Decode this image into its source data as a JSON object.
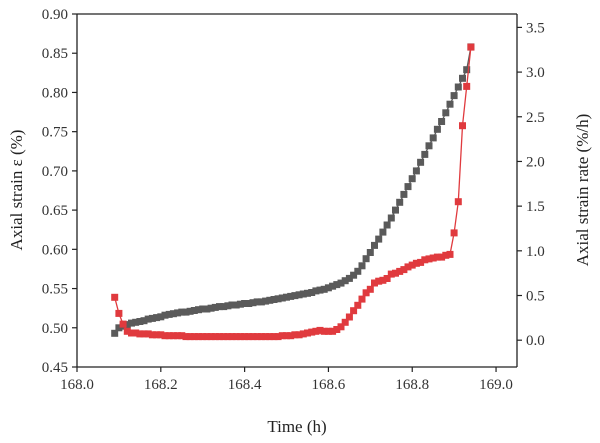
{
  "chart_data": {
    "type": "scatter",
    "xlabel": "Time (h)",
    "ylabel_left": "Axial strain ε (%)",
    "ylabel_right": "Axial strain rate (%/h)",
    "xlim": [
      168.0,
      169.05
    ],
    "ylim_left": [
      0.45,
      0.9
    ],
    "ylim_right": [
      -0.3,
      3.65
    ],
    "x_ticks": [
      "168.0",
      "168.2",
      "168.4",
      "168.6",
      "168.8",
      "169.0"
    ],
    "y_left_ticks": [
      "0.45",
      "0.50",
      "0.55",
      "0.60",
      "0.65",
      "0.70",
      "0.75",
      "0.80",
      "0.85",
      "0.90"
    ],
    "y_right_ticks": [
      "0.0",
      "0.5",
      "1.0",
      "1.5",
      "2.0",
      "2.5",
      "3.0",
      "3.5"
    ],
    "grid": false,
    "series": [
      {
        "axis": "left",
        "color": "#5a5a5a",
        "marker": "square",
        "x": [
          168.09,
          168.1,
          168.11,
          168.12,
          168.13,
          168.14,
          168.15,
          168.16,
          168.17,
          168.18,
          168.19,
          168.2,
          168.21,
          168.22,
          168.23,
          168.24,
          168.25,
          168.26,
          168.27,
          168.28,
          168.29,
          168.3,
          168.31,
          168.32,
          168.33,
          168.34,
          168.35,
          168.36,
          168.37,
          168.38,
          168.39,
          168.4,
          168.41,
          168.42,
          168.43,
          168.44,
          168.45,
          168.46,
          168.47,
          168.48,
          168.49,
          168.5,
          168.51,
          168.52,
          168.53,
          168.54,
          168.55,
          168.56,
          168.57,
          168.58,
          168.59,
          168.6,
          168.61,
          168.62,
          168.63,
          168.64,
          168.65,
          168.66,
          168.67,
          168.68,
          168.69,
          168.7,
          168.71,
          168.72,
          168.73,
          168.74,
          168.75,
          168.76,
          168.77,
          168.78,
          168.79,
          168.8,
          168.81,
          168.82,
          168.83,
          168.84,
          168.85,
          168.86,
          168.87,
          168.88,
          168.89,
          168.9,
          168.91,
          168.92,
          168.93,
          168.94
        ],
        "y": [
          0.493,
          0.5,
          0.502,
          0.504,
          0.506,
          0.507,
          0.508,
          0.509,
          0.511,
          0.512,
          0.513,
          0.514,
          0.516,
          0.517,
          0.518,
          0.519,
          0.52,
          0.52,
          0.521,
          0.522,
          0.523,
          0.524,
          0.524,
          0.525,
          0.526,
          0.527,
          0.527,
          0.528,
          0.529,
          0.529,
          0.53,
          0.531,
          0.531,
          0.532,
          0.533,
          0.533,
          0.534,
          0.535,
          0.536,
          0.537,
          0.538,
          0.539,
          0.54,
          0.541,
          0.542,
          0.543,
          0.544,
          0.545,
          0.547,
          0.548,
          0.549,
          0.551,
          0.553,
          0.555,
          0.557,
          0.56,
          0.563,
          0.567,
          0.572,
          0.579,
          0.588,
          0.596,
          0.605,
          0.613,
          0.622,
          0.631,
          0.64,
          0.65,
          0.66,
          0.67,
          0.68,
          0.69,
          0.7,
          0.711,
          0.721,
          0.732,
          0.742,
          0.753,
          0.763,
          0.774,
          0.785,
          0.796,
          0.807,
          0.818,
          0.829,
          0.858
        ]
      },
      {
        "axis": "right",
        "color": "#e03a3e",
        "marker": "square",
        "x": [
          168.09,
          168.1,
          168.11,
          168.12,
          168.13,
          168.14,
          168.15,
          168.16,
          168.17,
          168.18,
          168.19,
          168.2,
          168.21,
          168.22,
          168.23,
          168.24,
          168.25,
          168.26,
          168.27,
          168.28,
          168.29,
          168.3,
          168.31,
          168.32,
          168.33,
          168.34,
          168.35,
          168.36,
          168.37,
          168.38,
          168.39,
          168.4,
          168.41,
          168.42,
          168.43,
          168.44,
          168.45,
          168.46,
          168.47,
          168.48,
          168.49,
          168.5,
          168.51,
          168.52,
          168.53,
          168.54,
          168.55,
          168.56,
          168.57,
          168.58,
          168.59,
          168.6,
          168.61,
          168.62,
          168.63,
          168.64,
          168.65,
          168.66,
          168.67,
          168.68,
          168.69,
          168.7,
          168.71,
          168.72,
          168.73,
          168.74,
          168.75,
          168.76,
          168.77,
          168.78,
          168.79,
          168.8,
          168.81,
          168.82,
          168.83,
          168.84,
          168.85,
          168.86,
          168.87,
          168.88,
          168.89,
          168.9,
          168.91,
          168.92,
          168.93,
          168.94
        ],
        "y": [
          0.48,
          0.3,
          0.18,
          0.1,
          0.08,
          0.08,
          0.07,
          0.07,
          0.07,
          0.06,
          0.06,
          0.06,
          0.05,
          0.05,
          0.05,
          0.05,
          0.05,
          0.04,
          0.04,
          0.04,
          0.04,
          0.04,
          0.04,
          0.04,
          0.04,
          0.04,
          0.04,
          0.04,
          0.04,
          0.04,
          0.04,
          0.04,
          0.04,
          0.04,
          0.04,
          0.04,
          0.04,
          0.04,
          0.04,
          0.04,
          0.05,
          0.05,
          0.05,
          0.06,
          0.06,
          0.07,
          0.08,
          0.09,
          0.1,
          0.11,
          0.1,
          0.1,
          0.1,
          0.12,
          0.15,
          0.2,
          0.26,
          0.33,
          0.39,
          0.46,
          0.53,
          0.57,
          0.64,
          0.66,
          0.67,
          0.69,
          0.74,
          0.75,
          0.77,
          0.79,
          0.82,
          0.84,
          0.86,
          0.87,
          0.9,
          0.91,
          0.92,
          0.93,
          0.93,
          0.95,
          0.96,
          1.2,
          1.55,
          2.4,
          2.84,
          3.28
        ]
      }
    ]
  }
}
